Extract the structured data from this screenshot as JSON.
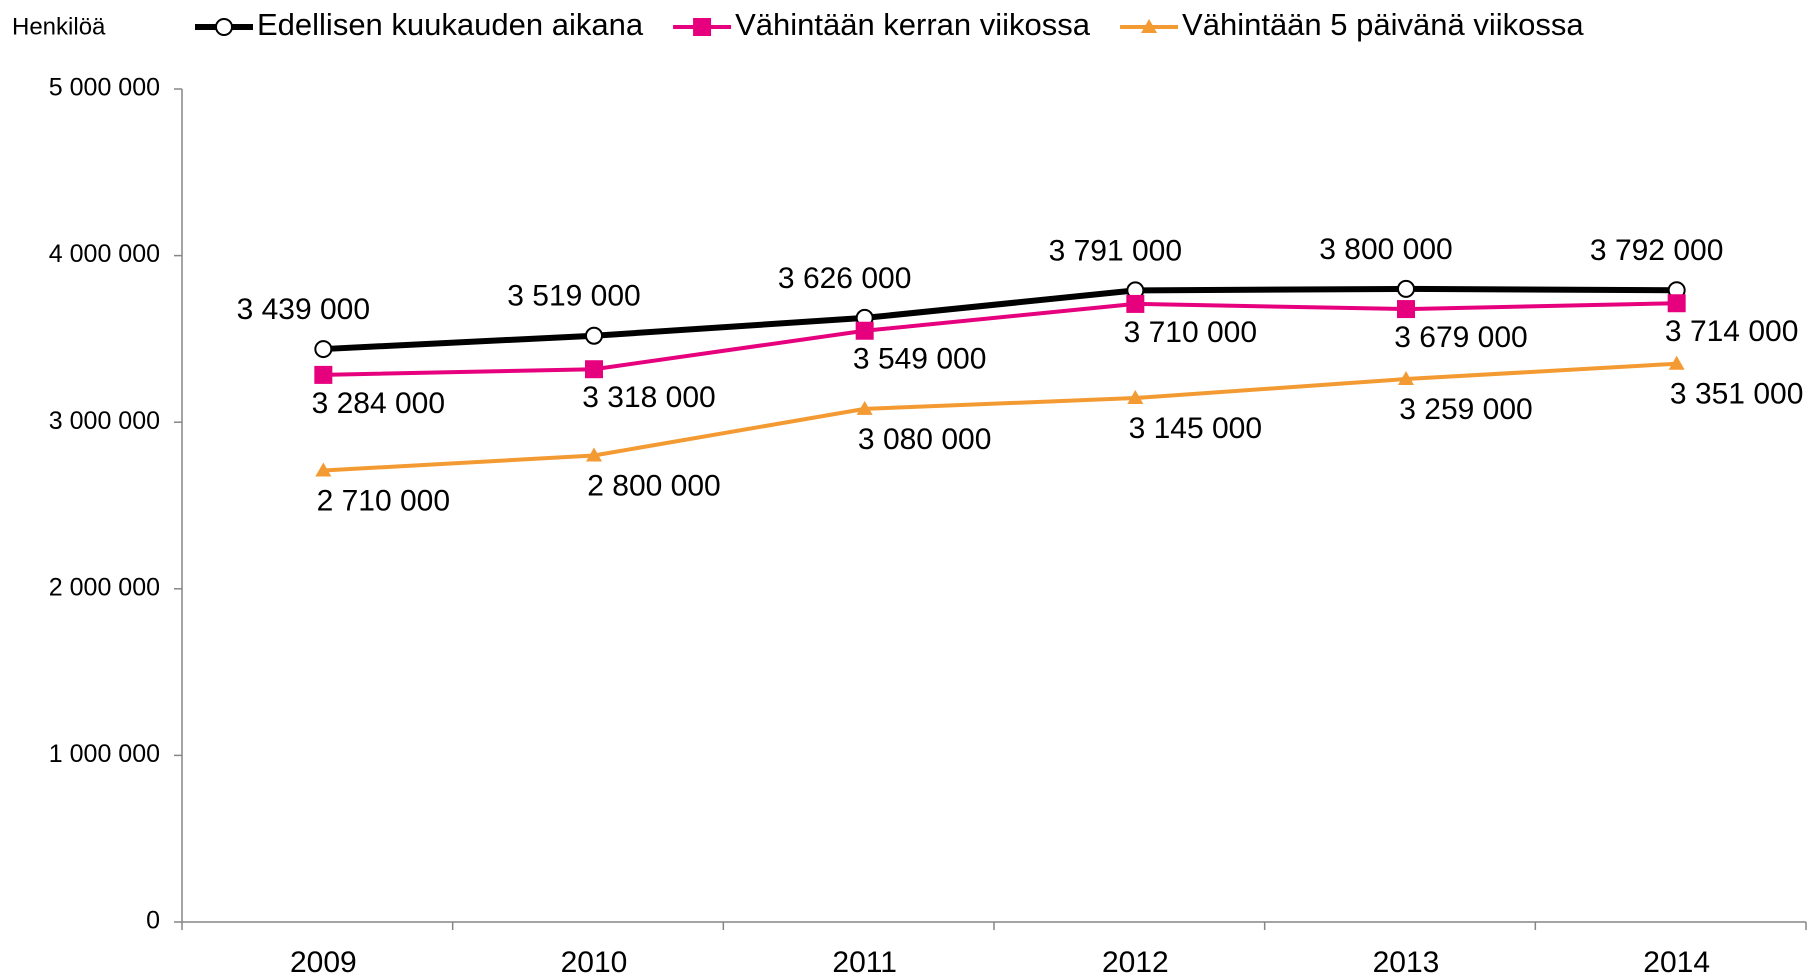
{
  "chart_data": {
    "type": "line",
    "y_label": "Henkilöä",
    "categories": [
      "2009",
      "2010",
      "2011",
      "2012",
      "2013",
      "2014"
    ],
    "series": [
      {
        "name": "Edellisen kuukauden aikana",
        "color": "#000000",
        "marker": "circle",
        "values": [
          3439000,
          3519000,
          3626000,
          3791000,
          3800000,
          3792000
        ],
        "value_labels": [
          "3 439 000",
          "3 519 000",
          "3 626 000",
          "3 791 000",
          "3 800 000",
          "3 792 000"
        ]
      },
      {
        "name": "Vähintään kerran viikossa",
        "color": "#e6007e",
        "marker": "square",
        "values": [
          3284000,
          3318000,
          3549000,
          3710000,
          3679000,
          3714000
        ],
        "value_labels": [
          "3 284 000",
          "3 318 000",
          "3 549 000",
          "3 710 000",
          "3 679 000",
          "3 714 000"
        ]
      },
      {
        "name": "Vähintään 5 päivänä viikossa",
        "color": "#f39a32",
        "marker": "triangle",
        "values": [
          2710000,
          2800000,
          3080000,
          3145000,
          3259000,
          3351000
        ],
        "value_labels": [
          "2 710 000",
          "2 800 000",
          "3 080 000",
          "3 145 000",
          "3 259 000",
          "3 351 000"
        ]
      }
    ],
    "ylim": [
      0,
      5000000
    ],
    "yticks": [
      0,
      {
        "value": 1000000,
        "label": "1 000 000"
      },
      {
        "value": 2000000,
        "label": "2 000 000"
      },
      {
        "value": 3000000,
        "label": "3 000 000"
      },
      {
        "value": 4000000,
        "label": "4 000 000"
      },
      {
        "value": 5000000,
        "label": "5 000 000"
      }
    ],
    "grid": false,
    "legend": "top"
  }
}
